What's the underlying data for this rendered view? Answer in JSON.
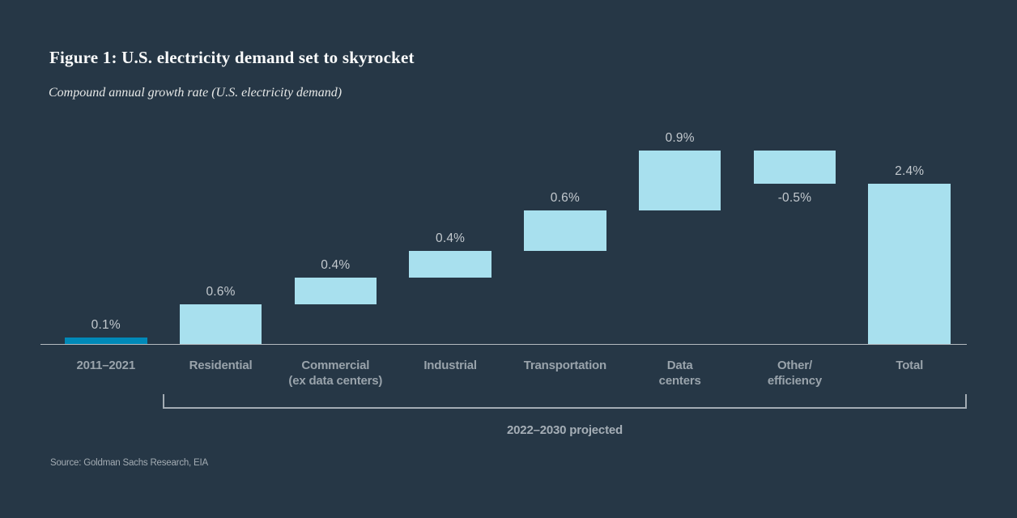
{
  "page": {
    "title": "Figure 1: U.S. electricity demand set to skyrocket",
    "subtitle": "Compound annual growth rate (U.S. electricity demand)",
    "source": "Source: Goldman Sachs Research, EIA"
  },
  "colors": {
    "background": "#263746",
    "bar": "#a8e0ee",
    "bar_highlight": "#0089b8",
    "axis": "#b5babf",
    "bracket": "#a3acb4",
    "value_label": "#c3c9ce",
    "category_label": "#99a3ab"
  },
  "chart_data": {
    "type": "bar",
    "subtype": "waterfall",
    "title": "Figure 1: U.S. electricity demand set to skyrocket",
    "ylabel": "Compound annual growth rate (U.S. electricity demand)",
    "xlabel": "",
    "unit": "%",
    "ylim": [
      0,
      2.9
    ],
    "grid": false,
    "legend": false,
    "bars": [
      {
        "category": "2011–2021",
        "category_lines": [
          "2011–2021"
        ],
        "label": "0.1%",
        "value": 0.1,
        "start": 0,
        "end": 0.1,
        "highlight": true,
        "label_position": "above"
      },
      {
        "category": "Residential",
        "category_lines": [
          "Residential"
        ],
        "label": "0.6%",
        "value": 0.6,
        "start": 0,
        "end": 0.6,
        "highlight": false,
        "label_position": "above"
      },
      {
        "category": "Commercial (ex data centers)",
        "category_lines": [
          "Commercial",
          "(ex data centers)"
        ],
        "label": "0.4%",
        "value": 0.4,
        "start": 0.6,
        "end": 1.0,
        "highlight": false,
        "label_position": "above"
      },
      {
        "category": "Industrial",
        "category_lines": [
          "Industrial"
        ],
        "label": "0.4%",
        "value": 0.4,
        "start": 1.0,
        "end": 1.4,
        "highlight": false,
        "label_position": "above"
      },
      {
        "category": "Transportation",
        "category_lines": [
          "Transportation"
        ],
        "label": "0.6%",
        "value": 0.6,
        "start": 1.4,
        "end": 2.0,
        "highlight": false,
        "label_position": "above"
      },
      {
        "category": "Data centers",
        "category_lines": [
          "Data",
          "centers"
        ],
        "label": "0.9%",
        "value": 0.9,
        "start": 2.0,
        "end": 2.9,
        "highlight": false,
        "label_position": "above"
      },
      {
        "category": "Other/efficiency",
        "category_lines": [
          "Other/",
          "efficiency"
        ],
        "label": "-0.5%",
        "value": -0.5,
        "start": 2.4,
        "end": 2.9,
        "highlight": false,
        "label_position": "below"
      },
      {
        "category": "Total",
        "category_lines": [
          "Total"
        ],
        "label": "2.4%",
        "value": 2.4,
        "start": 0,
        "end": 2.4,
        "highlight": false,
        "label_position": "above"
      }
    ],
    "bracket": {
      "label": "2022–2030 projected",
      "span_categories": [
        "Residential",
        "Total"
      ]
    }
  }
}
